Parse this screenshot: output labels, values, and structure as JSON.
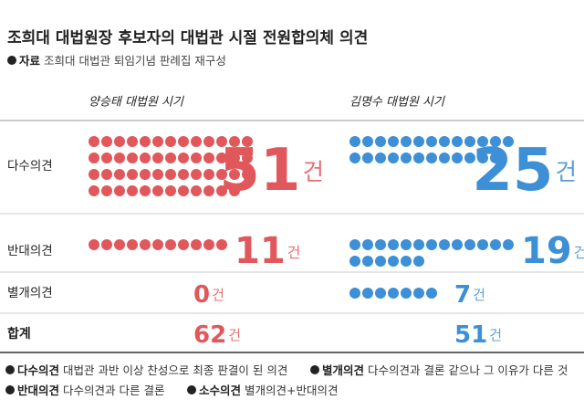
{
  "chart_data": {
    "type": "pictogram",
    "title": "조희대 대법원장 후보자의 대법관 시절 전원합의체 의견",
    "source_label": "자료",
    "source": "조희대 대법관 퇴임기념 판례집 재구성",
    "categories": [
      "다수의견",
      "반대의견",
      "별개의견"
    ],
    "total_label": "합계",
    "unit": "건",
    "series": [
      {
        "name": "양승태 대법원 시기",
        "color": "#e0585b",
        "values": [
          51,
          11,
          0
        ],
        "total": 62
      },
      {
        "name": "김명수 대법원 시기",
        "color": "#3d8fd6",
        "values": [
          25,
          19,
          7
        ],
        "total": 51
      }
    ],
    "notes": [
      {
        "term": "다수의견",
        "text": "대법관 과반 이상 찬성으로 최종 판결이 된 의견"
      },
      {
        "term": "별개의견",
        "text": "다수의견과 결론 같으나 그 이유가 다른 것"
      },
      {
        "term": "반대의견",
        "text": "다수의견과 다른 결론"
      },
      {
        "term": "소수의견",
        "text": "별개의견+반대의견"
      }
    ]
  }
}
